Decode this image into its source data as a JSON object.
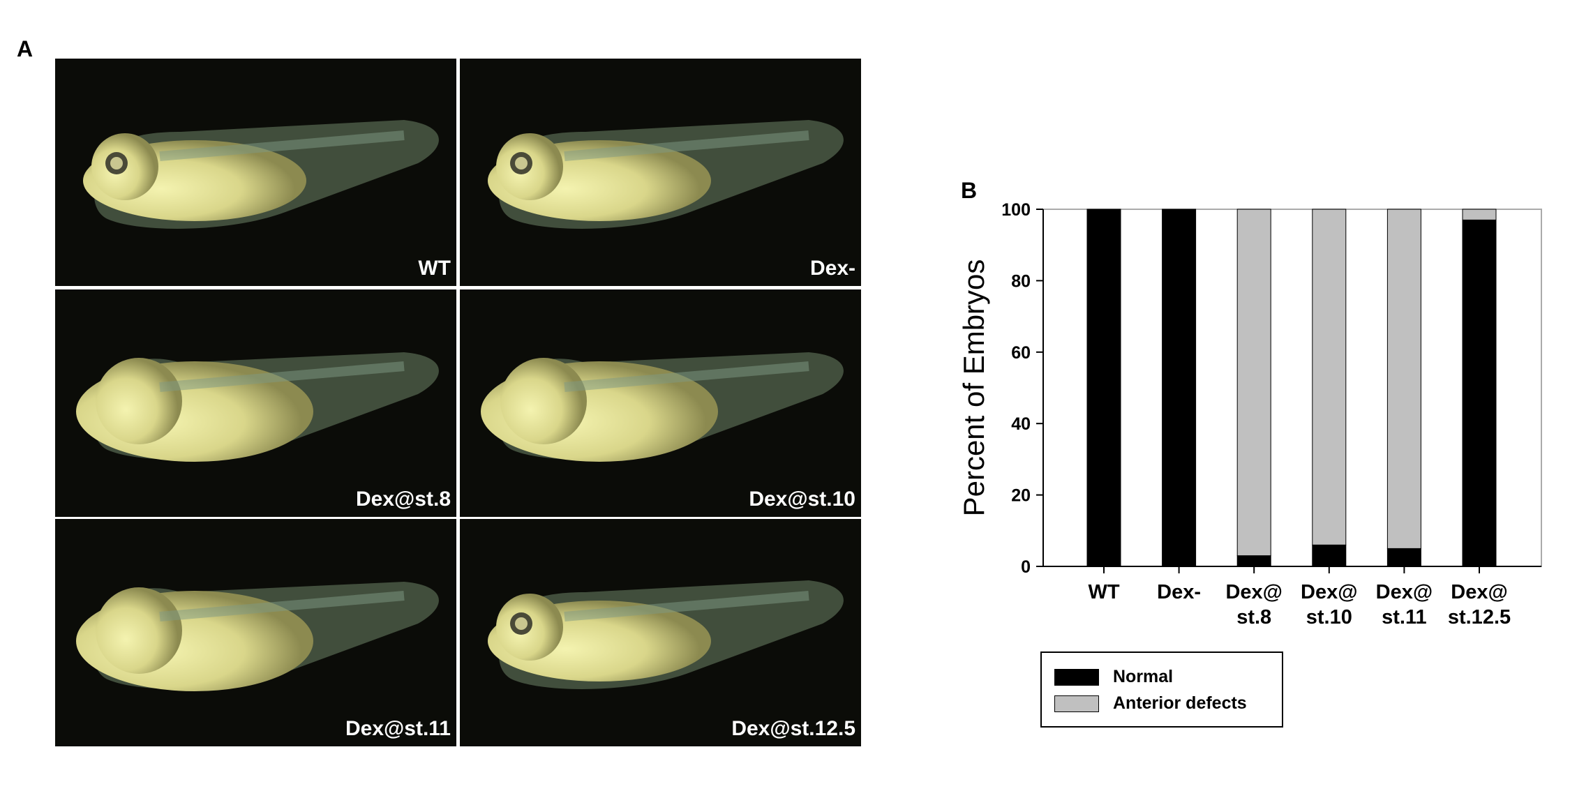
{
  "panel_a": {
    "label": "A",
    "images": [
      {
        "label": "WT"
      },
      {
        "label": "Dex-"
      },
      {
        "label": "Dex@st.8"
      },
      {
        "label": "Dex@st.10"
      },
      {
        "label": "Dex@st.11"
      },
      {
        "label": "Dex@st.12.5"
      }
    ]
  },
  "panel_b": {
    "label": "B"
  },
  "chart_data": {
    "type": "bar",
    "stacked": true,
    "categories": [
      "WT",
      "Dex-",
      "Dex@ st.8",
      "Dex@ st.10",
      "Dex@ st.11",
      "Dex@ st.12.5"
    ],
    "category_lines": [
      [
        "WT"
      ],
      [
        "Dex-"
      ],
      [
        "Dex@",
        "st.8"
      ],
      [
        "Dex@",
        "st.10"
      ],
      [
        "Dex@",
        "st.11"
      ],
      [
        "Dex@",
        "st.12.5"
      ]
    ],
    "series": [
      {
        "name": "Normal",
        "color": "#000000",
        "values": [
          100,
          100,
          3,
          6,
          5,
          97
        ]
      },
      {
        "name": "Anterior defects",
        "color": "#c0c0c0",
        "values": [
          0,
          0,
          97,
          94,
          95,
          3
        ]
      }
    ],
    "ylabel": "Percent of Embryos",
    "xlabel": "",
    "ylim": [
      0,
      100
    ],
    "yticks": [
      0,
      20,
      40,
      60,
      80,
      100
    ],
    "grid": false,
    "legend": "bottom"
  }
}
